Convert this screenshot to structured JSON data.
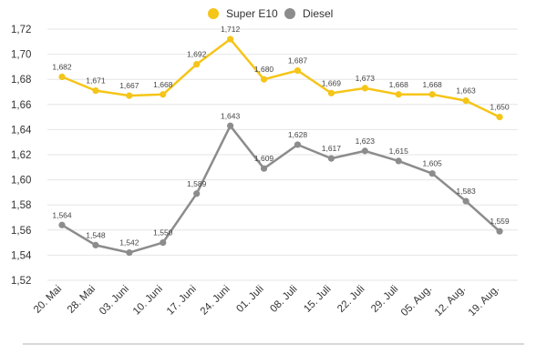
{
  "chart_data": {
    "type": "line",
    "categories": [
      "20. Mai",
      "28. Mai",
      "03. Juni",
      "10. Juni",
      "17. Juni",
      "24. Juni",
      "01. Juli",
      "08. Juli",
      "15. Juli",
      "22. Juli",
      "29. Juli",
      "05. Aug.",
      "12. Aug.",
      "19. Aug."
    ],
    "series": [
      {
        "name": "Super E10",
        "color": "#f5c518",
        "values": [
          1.682,
          1.671,
          1.667,
          1.668,
          1.692,
          1.712,
          1.68,
          1.687,
          1.669,
          1.673,
          1.668,
          1.668,
          1.663,
          1.65
        ],
        "labels": [
          "1,682",
          "1,671",
          "1,667",
          "1,668",
          "1,692",
          "1,712",
          "1,680",
          "1,687",
          "1,669",
          "1,673",
          "1,668",
          "1,668",
          "1,663",
          "1,650"
        ]
      },
      {
        "name": "Diesel",
        "color": "#8c8c8c",
        "values": [
          1.564,
          1.548,
          1.542,
          1.55,
          1.589,
          1.643,
          1.609,
          1.628,
          1.617,
          1.623,
          1.615,
          1.605,
          1.583,
          1.559
        ],
        "labels": [
          "1,564",
          "1,548",
          "1,542",
          "1,550",
          "1,589",
          "1,643",
          "1,609",
          "1,628",
          "1,617",
          "1,623",
          "1,615",
          "1,605",
          "1,583",
          "1,559"
        ]
      }
    ],
    "ylim": [
      1.52,
      1.72
    ],
    "yticks": [
      1.72,
      1.7,
      1.68,
      1.66,
      1.64,
      1.62,
      1.6,
      1.58,
      1.56,
      1.54,
      1.52
    ],
    "ytick_labels": [
      "1,72",
      "1,70",
      "1,68",
      "1,66",
      "1,64",
      "1,62",
      "1,60",
      "1,58",
      "1,56",
      "1,54",
      "1,52"
    ],
    "grid": true,
    "legend_position": "top-center"
  }
}
